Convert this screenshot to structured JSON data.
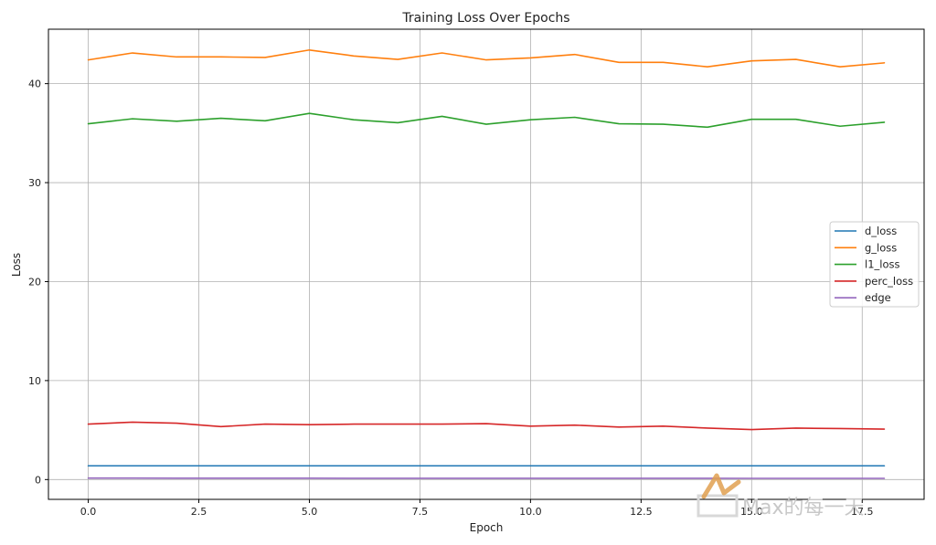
{
  "chart_data": {
    "type": "line",
    "title": "Training Loss Over Epochs",
    "xlabel": "Epoch",
    "ylabel": "Loss",
    "xlim": [
      -0.9,
      18.9
    ],
    "ylim": [
      -2.0,
      45.5
    ],
    "xticks": [
      0.0,
      2.5,
      5.0,
      7.5,
      10.0,
      12.5,
      15.0,
      17.5
    ],
    "xtick_labels": [
      "0.0",
      "2.5",
      "5.0",
      "7.5",
      "10.0",
      "12.5",
      "15.0",
      "17.5"
    ],
    "yticks": [
      0,
      10,
      20,
      30,
      40
    ],
    "ytick_labels": [
      "0",
      "10",
      "20",
      "30",
      "40"
    ],
    "grid": true,
    "legend_position": "center-right",
    "x": [
      0,
      1,
      2,
      3,
      4,
      5,
      6,
      7,
      8,
      9,
      10,
      11,
      12,
      13,
      14,
      15,
      16,
      17,
      18
    ],
    "series": [
      {
        "name": "d_loss",
        "color": "#1f77b4",
        "values": [
          1.39,
          1.39,
          1.39,
          1.39,
          1.39,
          1.39,
          1.39,
          1.39,
          1.39,
          1.39,
          1.39,
          1.39,
          1.39,
          1.39,
          1.39,
          1.39,
          1.39,
          1.39,
          1.39
        ]
      },
      {
        "name": "g_loss",
        "color": "#ff7f0e",
        "values": [
          42.4,
          43.1,
          42.7,
          42.7,
          42.65,
          43.4,
          42.8,
          42.45,
          43.1,
          42.4,
          42.6,
          42.95,
          42.15,
          42.15,
          41.7,
          42.3,
          42.45,
          41.7,
          42.1
        ]
      },
      {
        "name": "l1_loss",
        "color": "#2ca02c",
        "values": [
          35.95,
          36.45,
          36.2,
          36.5,
          36.25,
          37.0,
          36.35,
          36.05,
          36.7,
          35.9,
          36.35,
          36.6,
          35.95,
          35.9,
          35.6,
          36.4,
          36.4,
          35.7,
          36.1
        ]
      },
      {
        "name": "perc_loss",
        "color": "#d62728",
        "values": [
          5.6,
          5.8,
          5.7,
          5.35,
          5.6,
          5.55,
          5.6,
          5.6,
          5.6,
          5.65,
          5.4,
          5.5,
          5.3,
          5.4,
          5.2,
          5.05,
          5.2,
          5.15,
          5.1
        ]
      },
      {
        "name": "edge",
        "color": "#9467bd",
        "values": [
          0.15,
          0.15,
          0.14,
          0.14,
          0.14,
          0.14,
          0.13,
          0.13,
          0.13,
          0.13,
          0.13,
          0.13,
          0.13,
          0.13,
          0.13,
          0.12,
          0.12,
          0.12,
          0.12
        ]
      }
    ]
  },
  "watermark": {
    "text": "Max的每一天",
    "icon": "m-logo-icon",
    "color": "#e0a050"
  }
}
